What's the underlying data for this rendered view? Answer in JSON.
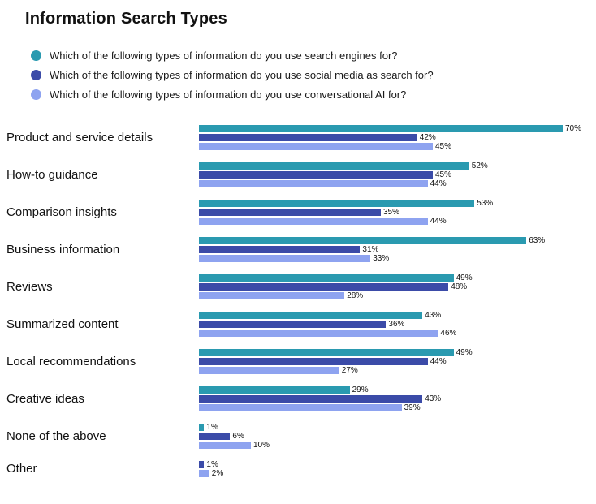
{
  "title": "Information Search Types",
  "chart_data": {
    "type": "bar",
    "orientation": "horizontal",
    "value_suffix": "%",
    "xlim": [
      0,
      70
    ],
    "grid": false,
    "legend_position": "top-left",
    "categories": [
      "Product and service details",
      "How-to guidance",
      "Comparison insights",
      "Business information",
      "Reviews",
      "Summarized content",
      "Local recommendations",
      "Creative ideas",
      "None of the above",
      "Other"
    ],
    "series": [
      {
        "key": "search-engines",
        "name": "Which of the following types of information do you use search engines for?",
        "color": "#2A9AB0",
        "values": [
          70,
          52,
          53,
          63,
          49,
          43,
          49,
          29,
          1,
          null
        ]
      },
      {
        "key": "social-media",
        "name": "Which of the following types of information do you use social media as search for?",
        "color": "#3B4BA8",
        "values": [
          42,
          45,
          35,
          31,
          48,
          36,
          44,
          43,
          6,
          1
        ]
      },
      {
        "key": "conversational-ai",
        "name": "Which of the following types of information do you use conversational AI for?",
        "color": "#8EA3F0",
        "values": [
          45,
          44,
          44,
          33,
          28,
          46,
          27,
          39,
          10,
          2
        ]
      }
    ]
  }
}
